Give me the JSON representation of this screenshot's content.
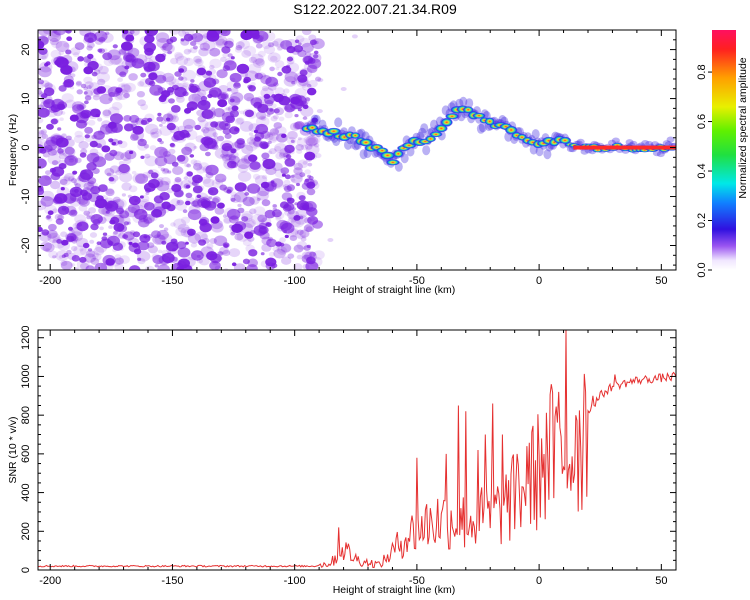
{
  "title": "S122.2022.007.21.34.R09",
  "chart_data": [
    {
      "type": "heatmap",
      "xlabel": "Height of straight line (km)",
      "ylabel": "Frequency (Hz)",
      "xlim": [
        -205,
        56
      ],
      "ylim": [
        -25,
        24
      ],
      "xticks": [
        -200,
        -150,
        -100,
        -50,
        0,
        50
      ],
      "yticks": [
        -20,
        -10,
        0,
        10,
        20
      ],
      "noise_region_x": [
        -205,
        -90
      ],
      "ridge": [
        {
          "x": -95,
          "y": 4
        },
        {
          "x": -85,
          "y": 3
        },
        {
          "x": -75,
          "y": 2
        },
        {
          "x": -65,
          "y": -0.5
        },
        {
          "x": -60,
          "y": -3
        },
        {
          "x": -55,
          "y": 0
        },
        {
          "x": -50,
          "y": 1
        },
        {
          "x": -45,
          "y": 2
        },
        {
          "x": -40,
          "y": 4
        },
        {
          "x": -35,
          "y": 7
        },
        {
          "x": -30,
          "y": 8
        },
        {
          "x": -25,
          "y": 6
        },
        {
          "x": -20,
          "y": 5
        },
        {
          "x": -15,
          "y": 4
        },
        {
          "x": -10,
          "y": 3
        },
        {
          "x": -5,
          "y": 2
        },
        {
          "x": 0,
          "y": 0.5
        },
        {
          "x": 5,
          "y": 1
        },
        {
          "x": 10,
          "y": 2
        },
        {
          "x": 15,
          "y": 0.5
        },
        {
          "x": 25,
          "y": 0
        },
        {
          "x": 40,
          "y": 0
        },
        {
          "x": 56,
          "y": 0
        }
      ],
      "colorbar": {
        "label": "Normalized spectral amplitude",
        "ticks": [
          "0.0",
          "0.2",
          "0.4",
          "0.6",
          "0.8"
        ],
        "range": [
          0,
          0.97
        ]
      },
      "colors": {
        "noise": "#7a1fe0",
        "ridge_edge": "#1f1fe0",
        "ridge_core": "#ff2020"
      }
    },
    {
      "type": "line",
      "xlabel": "Height of straight line (km)",
      "ylabel": "SNR (10 * v/v)",
      "xlim": [
        -205,
        56
      ],
      "ylim": [
        0,
        1240
      ],
      "xticks": [
        -200,
        -150,
        -100,
        -50,
        0,
        50
      ],
      "yticks": [
        0,
        200,
        400,
        600,
        800,
        1000,
        1200
      ],
      "line_color": "#e53030",
      "envelope": [
        {
          "x": -205,
          "y": 20
        },
        {
          "x": -92,
          "y": 20
        },
        {
          "x": -85,
          "y": 40
        },
        {
          "x": -80,
          "y": 120
        },
        {
          "x": -75,
          "y": 60
        },
        {
          "x": -70,
          "y": 40
        },
        {
          "x": -65,
          "y": 30
        },
        {
          "x": -60,
          "y": 100
        },
        {
          "x": -55,
          "y": 180
        },
        {
          "x": -50,
          "y": 220
        },
        {
          "x": -45,
          "y": 260
        },
        {
          "x": -40,
          "y": 280
        },
        {
          "x": -35,
          "y": 280
        },
        {
          "x": -30,
          "y": 260
        },
        {
          "x": -25,
          "y": 280
        },
        {
          "x": -20,
          "y": 300
        },
        {
          "x": -15,
          "y": 330
        },
        {
          "x": -10,
          "y": 400
        },
        {
          "x": -5,
          "y": 470
        },
        {
          "x": 0,
          "y": 550
        },
        {
          "x": 5,
          "y": 620
        },
        {
          "x": 10,
          "y": 600
        },
        {
          "x": 15,
          "y": 700
        },
        {
          "x": 20,
          "y": 820
        },
        {
          "x": 25,
          "y": 900
        },
        {
          "x": 30,
          "y": 950
        },
        {
          "x": 40,
          "y": 980
        },
        {
          "x": 56,
          "y": 1000
        }
      ],
      "spikes": [
        {
          "x": -82,
          "y": 220
        },
        {
          "x": -50,
          "y": 580
        },
        {
          "x": -38,
          "y": 600
        },
        {
          "x": -33,
          "y": 850
        },
        {
          "x": -30,
          "y": 820
        },
        {
          "x": -25,
          "y": 620
        },
        {
          "x": -22,
          "y": 700
        },
        {
          "x": -19,
          "y": 860
        },
        {
          "x": -15,
          "y": 700
        },
        {
          "x": -9,
          "y": 600
        },
        {
          "x": -5,
          "y": 640
        },
        {
          "x": 1,
          "y": 680
        },
        {
          "x": 5,
          "y": 960
        },
        {
          "x": 8,
          "y": 920
        },
        {
          "x": 11,
          "y": 1240
        },
        {
          "x": 15,
          "y": 800
        },
        {
          "x": 19,
          "y": 920
        },
        {
          "x": 22,
          "y": 900
        },
        {
          "x": 31,
          "y": 1010
        }
      ]
    }
  ]
}
